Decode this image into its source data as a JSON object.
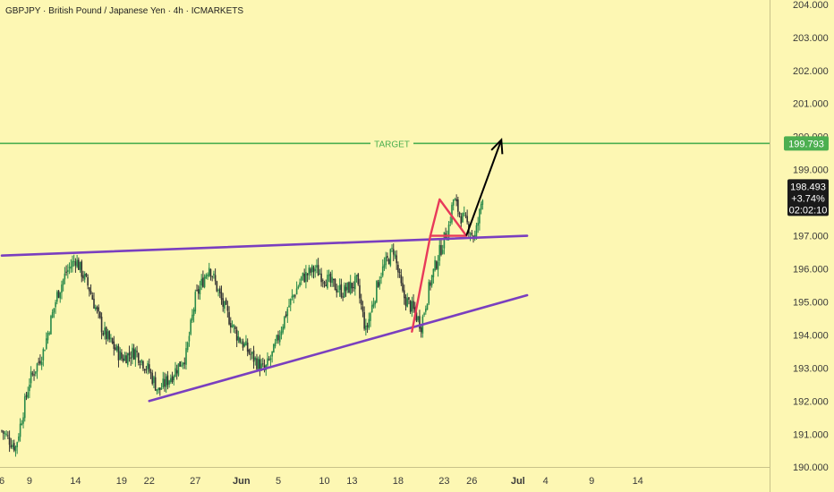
{
  "header": {
    "title": "GBPJPY · British Pound / Japanese Yen · 4h · ICMARKETS"
  },
  "colors": {
    "background": "#fdf7b3",
    "bull": "#2a8a4a",
    "bear": "#333333",
    "channel": "#7a3fbf",
    "triangle": "#e83a5a",
    "target": "#4caf50",
    "arrow": "#000000",
    "price_badge": "#1a1a1a"
  },
  "target": {
    "label": "TARGET",
    "price": 199.793,
    "price_label": "199.793"
  },
  "current": {
    "price_label": "198.493",
    "change_label": "+3.74%",
    "countdown_label": "02:02:10",
    "price": 198.493
  },
  "chart_data": {
    "type": "candlestick",
    "symbol": "GBPJPY",
    "timeframe": "4h",
    "ylim": [
      189.6,
      204.05
    ],
    "y_ticks": [
      190.0,
      191.0,
      192.0,
      193.0,
      194.0,
      195.0,
      196.0,
      197.0,
      198.0,
      199.0,
      200.0,
      201.0,
      202.0,
      203.0,
      204.0
    ],
    "y_tick_labels": [
      "190.000",
      "191.000",
      "192.000",
      "193.000",
      "194.000",
      "195.000",
      "196.000",
      "197.000",
      "198.000",
      "199.000",
      "200.000",
      "201.000",
      "202.000",
      "203.000",
      "204.000"
    ],
    "x_ticks": [
      {
        "label": "6",
        "day": 0,
        "bold": false
      },
      {
        "label": "9",
        "day": 3,
        "bold": false
      },
      {
        "label": "14",
        "day": 8,
        "bold": false
      },
      {
        "label": "19",
        "day": 13,
        "bold": false
      },
      {
        "label": "22",
        "day": 16,
        "bold": false
      },
      {
        "label": "27",
        "day": 21,
        "bold": false
      },
      {
        "label": "Jun",
        "day": 26,
        "bold": true
      },
      {
        "label": "5",
        "day": 30,
        "bold": false
      },
      {
        "label": "10",
        "day": 35,
        "bold": false
      },
      {
        "label": "13",
        "day": 38,
        "bold": false
      },
      {
        "label": "18",
        "day": 43,
        "bold": false
      },
      {
        "label": "23",
        "day": 48,
        "bold": false
      },
      {
        "label": "26",
        "day": 51,
        "bold": false
      },
      {
        "label": "Jul",
        "day": 56,
        "bold": true
      },
      {
        "label": "4",
        "day": 59,
        "bold": false
      },
      {
        "label": "9",
        "day": 64,
        "bold": false
      },
      {
        "label": "14",
        "day": 69,
        "bold": false
      }
    ],
    "price_path": [
      [
        0,
        191.1
      ],
      [
        1.5,
        190.6
      ],
      [
        3,
        192.6
      ],
      [
        4.5,
        193.5
      ],
      [
        6,
        195.2
      ],
      [
        7,
        195.9
      ],
      [
        8,
        196.3
      ],
      [
        9.5,
        195.4
      ],
      [
        11,
        194.1
      ],
      [
        13,
        193.3
      ],
      [
        14.5,
        193.5
      ],
      [
        16,
        192.9
      ],
      [
        17,
        192.3
      ],
      [
        18.5,
        192.8
      ],
      [
        20,
        193.4
      ],
      [
        21,
        195.1
      ],
      [
        22.5,
        196.1
      ],
      [
        24,
        194.9
      ],
      [
        25.5,
        194.0
      ],
      [
        27,
        193.4
      ],
      [
        28.5,
        192.9
      ],
      [
        29.5,
        193.5
      ],
      [
        31,
        194.8
      ],
      [
        32.5,
        195.7
      ],
      [
        34,
        196.0
      ],
      [
        35.5,
        195.6
      ],
      [
        37,
        195.3
      ],
      [
        38.5,
        195.6
      ],
      [
        39.5,
        194.1
      ],
      [
        41,
        195.8
      ],
      [
        42.5,
        196.6
      ],
      [
        43.5,
        195.2
      ],
      [
        44.5,
        194.8
      ],
      [
        45.5,
        194.3
      ],
      [
        46.5,
        195.6
      ],
      [
        47.5,
        196.5
      ],
      [
        48.5,
        197.3
      ],
      [
        49,
        198.1
      ],
      [
        49.8,
        197.6
      ],
      [
        50.6,
        197.3
      ],
      [
        51.3,
        196.9
      ],
      [
        51.8,
        197.6
      ],
      [
        52.3,
        198.5
      ]
    ],
    "annotations": {
      "upper_channel": [
        [
          0,
          196.4
        ],
        [
          57,
          197.0
        ]
      ],
      "lower_channel": [
        [
          16,
          192.0
        ],
        [
          57,
          195.2
        ]
      ],
      "pole": [
        [
          44.5,
          194.1
        ],
        [
          46.5,
          197.0
        ]
      ],
      "triangle": [
        [
          46.5,
          197.0
        ],
        [
          47.5,
          198.1
        ],
        [
          50.4,
          197.0
        ]
      ],
      "projection_arrow": [
        [
          50.4,
          197.0
        ],
        [
          54.2,
          199.9
        ]
      ]
    }
  }
}
